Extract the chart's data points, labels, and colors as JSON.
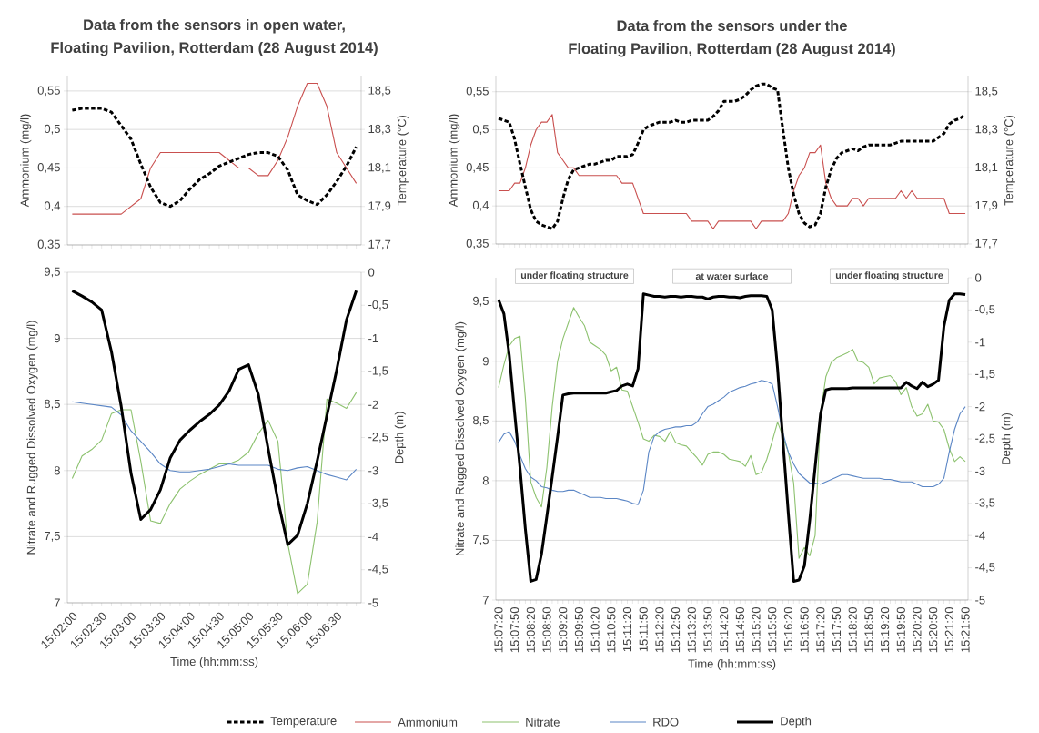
{
  "chart_data": [
    {
      "type": "line",
      "title": "Data from the sensors in open water,",
      "subtitle": "Floating Pavilion, Rotterdam  (28 August 2014)",
      "ylabel": "Ammonium (mg/l)",
      "y2label": "Temperature (°C)",
      "grid": "y",
      "categories": [
        null,
        null,
        null,
        null,
        null,
        null,
        null,
        null,
        null,
        null,
        null,
        null,
        null,
        null,
        null,
        null,
        null,
        null,
        null,
        null,
        null,
        null,
        null,
        null,
        null,
        null,
        null,
        null,
        null,
        null
      ],
      "ylim": [
        0.35,
        0.57
      ],
      "yticks": [
        {
          "value": 0.35,
          "label": "0,35"
        },
        {
          "value": 0.4,
          "label": "0,4"
        },
        {
          "value": 0.45,
          "label": "0,45"
        },
        {
          "value": 0.5,
          "label": "0,5"
        },
        {
          "value": 0.55,
          "label": "0,55"
        }
      ],
      "y2lim": [
        17.7,
        18.58
      ],
      "y2ticks": [
        {
          "value": 17.7,
          "label": "17,7"
        },
        {
          "value": 17.9,
          "label": "17,9"
        },
        {
          "value": 18.1,
          "label": "18,1"
        },
        {
          "value": 18.3,
          "label": "18,3"
        },
        {
          "value": 18.5,
          "label": "18,5"
        }
      ],
      "series": [
        {
          "color": "#000000",
          "axis": "y2",
          "line_style": "dashed",
          "values": [
            18.4,
            18.41,
            18.41,
            18.41,
            18.39,
            18.32,
            18.25,
            18.12,
            18.0,
            17.92,
            17.9,
            17.93,
            17.99,
            18.04,
            18.07,
            18.11,
            18.13,
            18.15,
            18.17,
            18.18,
            18.18,
            18.16,
            18.09,
            17.96,
            17.93,
            17.91,
            17.96,
            18.03,
            18.11,
            18.21
          ]
        },
        {
          "color": "#c9504f",
          "values": [
            0.39,
            0.39,
            0.39,
            0.39,
            0.39,
            0.39,
            0.4,
            0.41,
            0.45,
            0.47,
            0.47,
            0.47,
            0.47,
            0.47,
            0.47,
            0.47,
            0.46,
            0.45,
            0.45,
            0.44,
            0.44,
            0.46,
            0.49,
            0.53,
            0.56,
            0.56,
            0.53,
            0.47,
            0.45,
            0.43
          ]
        }
      ]
    },
    {
      "type": "line",
      "title": "Data from the sensors under the",
      "subtitle": "Floating Pavilion, Rotterdam  (28 August 2014)",
      "ylabel": "Ammonium (mg/l)",
      "y2label": "Temperature (°C)",
      "grid": "y",
      "legend": "bottom",
      "categories": [
        null,
        null,
        null,
        null,
        null,
        null,
        null,
        null,
        null,
        null,
        null,
        null,
        null,
        null,
        null,
        null,
        null,
        null,
        null,
        null,
        null,
        null,
        null,
        null,
        null,
        null,
        null,
        null,
        null,
        null,
        null,
        null,
        null,
        null,
        null,
        null,
        null,
        null,
        null,
        null,
        null,
        null,
        null,
        null,
        null,
        null,
        null,
        null,
        null,
        null,
        null,
        null,
        null,
        null,
        null,
        null,
        null,
        null,
        null,
        null,
        null,
        null,
        null,
        null,
        null,
        null,
        null,
        null,
        null,
        null,
        null,
        null,
        null,
        null,
        null,
        null,
        null,
        null,
        null,
        null,
        null,
        null,
        null,
        null,
        null,
        null,
        null,
        null
      ],
      "ylim": [
        0.35,
        0.57
      ],
      "yticks": [
        {
          "value": 0.35,
          "label": "0,35"
        },
        {
          "value": 0.4,
          "label": "0,4"
        },
        {
          "value": 0.45,
          "label": "0,45"
        },
        {
          "value": 0.5,
          "label": "0,5"
        },
        {
          "value": 0.55,
          "label": "0,55"
        }
      ],
      "y2lim": [
        17.7,
        18.58
      ],
      "y2ticks": [
        {
          "value": 17.7,
          "label": "17,7"
        },
        {
          "value": 17.9,
          "label": "17,9"
        },
        {
          "value": 18.1,
          "label": "18,1"
        },
        {
          "value": 18.3,
          "label": "18,3"
        },
        {
          "value": 18.5,
          "label": "18,5"
        }
      ],
      "series": [
        {
          "name": "Temperature",
          "color": "#000000",
          "axis": "y2",
          "line_style": "dashed",
          "values": [
            18.36,
            18.35,
            18.34,
            18.25,
            18.12,
            18.0,
            17.88,
            17.82,
            17.8,
            17.79,
            17.78,
            17.82,
            17.94,
            18.04,
            18.09,
            18.1,
            18.11,
            18.12,
            18.12,
            18.13,
            18.14,
            18.14,
            18.16,
            18.16,
            18.16,
            18.17,
            18.23,
            18.3,
            18.32,
            18.33,
            18.34,
            18.34,
            18.34,
            18.35,
            18.34,
            18.34,
            18.35,
            18.35,
            18.35,
            18.35,
            18.37,
            18.4,
            18.45,
            18.45,
            18.45,
            18.46,
            18.48,
            18.51,
            18.53,
            18.54,
            18.54,
            18.52,
            18.51,
            18.3,
            18.1,
            17.96,
            17.86,
            17.81,
            17.79,
            17.8,
            17.86,
            18.0,
            18.09,
            18.15,
            18.18,
            18.19,
            18.2,
            18.19,
            18.21,
            18.22,
            18.22,
            18.22,
            18.22,
            18.22,
            18.23,
            18.24,
            18.24,
            18.24,
            18.24,
            18.24,
            18.24,
            18.24,
            18.26,
            18.28,
            18.33,
            18.35,
            18.36,
            18.38
          ]
        },
        {
          "name": "Ammonium",
          "color": "#c9504f",
          "values": [
            0.42,
            0.42,
            0.42,
            0.43,
            0.43,
            0.45,
            0.48,
            0.5,
            0.51,
            0.51,
            0.52,
            0.47,
            0.46,
            0.45,
            0.45,
            0.44,
            0.44,
            0.44,
            0.44,
            0.44,
            0.44,
            0.44,
            0.44,
            0.43,
            0.43,
            0.43,
            0.41,
            0.39,
            0.39,
            0.39,
            0.39,
            0.39,
            0.39,
            0.39,
            0.39,
            0.39,
            0.38,
            0.38,
            0.38,
            0.38,
            0.37,
            0.38,
            0.38,
            0.38,
            0.38,
            0.38,
            0.38,
            0.38,
            0.37,
            0.38,
            0.38,
            0.38,
            0.38,
            0.38,
            0.39,
            0.42,
            0.44,
            0.45,
            0.47,
            0.47,
            0.48,
            0.43,
            0.41,
            0.4,
            0.4,
            0.4,
            0.41,
            0.41,
            0.4,
            0.41,
            0.41,
            0.41,
            0.41,
            0.41,
            0.41,
            0.42,
            0.41,
            0.42,
            0.41,
            0.41,
            0.41,
            0.41,
            0.41,
            0.41,
            0.39,
            0.39,
            0.39,
            0.39
          ]
        }
      ]
    },
    {
      "type": "line",
      "xlabel": "Time (hh:mm:ss)",
      "ylabel": "Nitrate and Rugged Dissolved Oxygen (mg/l)",
      "y2label": "Depth (m)",
      "grid": "y",
      "categories": [
        "15:02:00",
        null,
        null,
        "15:02:30",
        null,
        null,
        "15:03:00",
        null,
        null,
        "15:03:30",
        null,
        null,
        "15:04:00",
        null,
        null,
        "15:04:30",
        null,
        null,
        "15:05:00",
        null,
        null,
        "15:05:30",
        null,
        null,
        "15:06:00",
        null,
        null,
        "15:06:30",
        null,
        null
      ],
      "ylim": [
        7,
        9.5
      ],
      "yticks": [
        7,
        {
          "value": 7.5,
          "label": "7,5"
        },
        8,
        {
          "value": 8.5,
          "label": "8,5"
        },
        9,
        {
          "value": 9.5,
          "label": "9,5"
        }
      ],
      "y2lim": [
        -5,
        0
      ],
      "y2ticks": [
        -5,
        {
          "value": -4.5,
          "label": "-4,5"
        },
        -4,
        {
          "value": -3.5,
          "label": "-3,5"
        },
        -3,
        {
          "value": -2.5,
          "label": "-2,5"
        },
        -2,
        {
          "value": -1.5,
          "label": "-1,5"
        },
        -1,
        {
          "value": -0.5,
          "label": "-0,5"
        },
        0
      ],
      "series": [
        {
          "color": "#8dc26f",
          "values": [
            7.94,
            8.11,
            8.16,
            8.23,
            8.43,
            8.46,
            8.46,
            8.07,
            7.62,
            7.6,
            7.75,
            7.86,
            7.92,
            7.97,
            8.01,
            8.05,
            8.05,
            8.08,
            8.14,
            8.28,
            8.38,
            8.22,
            7.45,
            7.07,
            7.14,
            7.61,
            8.54,
            8.51,
            8.47,
            8.59
          ]
        },
        {
          "color": "#5b86c5",
          "values": [
            8.52,
            8.51,
            8.5,
            8.49,
            8.48,
            8.42,
            8.3,
            8.22,
            8.14,
            8.05,
            8.0,
            7.99,
            7.99,
            8.0,
            8.01,
            8.03,
            8.05,
            8.04,
            8.04,
            8.04,
            8.04,
            8.01,
            8.0,
            8.02,
            8.03,
            8.0,
            7.97,
            7.95,
            7.93,
            8.01
          ]
        },
        {
          "color": "#000000",
          "axis": "y2",
          "values": [
            -0.28,
            -0.36,
            -0.45,
            -0.57,
            -1.2,
            -2.03,
            -3.04,
            -3.74,
            -3.59,
            -3.29,
            -2.81,
            -2.54,
            -2.39,
            -2.26,
            -2.15,
            -2.01,
            -1.8,
            -1.47,
            -1.4,
            -1.85,
            -2.67,
            -3.45,
            -4.12,
            -3.98,
            -3.5,
            -2.86,
            -2.17,
            -1.48,
            -0.72,
            -0.28
          ]
        }
      ]
    },
    {
      "type": "line",
      "xlabel": "Time (hh:mm:ss)",
      "ylabel": "Nitrate and Rugged Dissolved Oxygen (mg/l)",
      "y2label": "Depth (m)",
      "grid": "y",
      "legend": "bottom",
      "annotations": [
        "under floating structure",
        "at water surface",
        "under floating structure"
      ],
      "categories": [
        "15:07:20",
        null,
        null,
        "15:07:50",
        null,
        null,
        "15:08:20",
        null,
        null,
        "15:08:50",
        null,
        null,
        "15:09:20",
        null,
        null,
        "15:09:50",
        null,
        null,
        "15:10:20",
        null,
        null,
        "15:10:50",
        null,
        null,
        "15:11:20",
        null,
        null,
        "15:11:50",
        null,
        null,
        "15:12:20",
        null,
        null,
        "15:12:50",
        null,
        null,
        "15:13:20",
        null,
        null,
        "15:13:50",
        null,
        null,
        "15:14:20",
        null,
        null,
        "15:14:50",
        null,
        null,
        "15:15:20",
        null,
        null,
        "15:15:50",
        null,
        null,
        "15:16:20",
        null,
        null,
        "15:16:50",
        null,
        null,
        "15:17:20",
        null,
        null,
        "15:17:50",
        null,
        null,
        "15:18:20",
        null,
        null,
        "15:18:50",
        null,
        null,
        "15:19:20",
        null,
        null,
        "15:19:50",
        null,
        null,
        "15:20:20",
        null,
        null,
        "15:20:50",
        null,
        null,
        "15:21:20",
        null,
        null,
        "15:21:50"
      ],
      "ylim": [
        7,
        9.7
      ],
      "yticks": [
        7,
        {
          "value": 7.5,
          "label": "7,5"
        },
        8,
        {
          "value": 8.5,
          "label": "8,5"
        },
        9,
        {
          "value": 9.5,
          "label": "9,5"
        }
      ],
      "y2lim": [
        -5,
        0
      ],
      "y2ticks": [
        -5,
        {
          "value": -4.5,
          "label": "-4,5"
        },
        -4,
        {
          "value": -3.5,
          "label": "-3,5"
        },
        -3,
        {
          "value": -2.5,
          "label": "-2,5"
        },
        -2,
        {
          "value": -1.5,
          "label": "-1,5"
        },
        -1,
        {
          "value": -0.5,
          "label": "-0,5"
        },
        0
      ],
      "series": [
        {
          "name": "Nitrate",
          "color": "#8dc26f",
          "values": [
            8.78,
            8.97,
            9.13,
            9.19,
            9.21,
            8.69,
            7.99,
            7.86,
            7.78,
            8.11,
            8.62,
            9.0,
            9.19,
            9.32,
            9.45,
            9.37,
            9.3,
            9.16,
            9.13,
            9.1,
            9.05,
            8.92,
            8.95,
            8.76,
            8.75,
            8.62,
            8.49,
            8.35,
            8.33,
            8.38,
            8.37,
            8.33,
            8.41,
            8.32,
            8.3,
            8.29,
            8.24,
            8.19,
            8.13,
            8.22,
            8.24,
            8.24,
            8.22,
            8.18,
            8.17,
            8.16,
            8.12,
            8.21,
            8.05,
            8.07,
            8.18,
            8.33,
            8.49,
            8.37,
            8.24,
            7.98,
            7.35,
            7.44,
            7.37,
            7.54,
            8.56,
            8.87,
            8.99,
            9.03,
            9.05,
            9.07,
            9.1,
            9.0,
            8.99,
            8.95,
            8.81,
            8.86,
            8.87,
            8.88,
            8.83,
            8.72,
            8.78,
            8.62,
            8.54,
            8.56,
            8.64,
            8.5,
            8.49,
            8.43,
            8.27,
            8.16,
            8.2,
            8.16
          ]
        },
        {
          "name": "RDO",
          "color": "#5b86c5",
          "values": [
            8.32,
            8.39,
            8.41,
            8.33,
            8.21,
            8.1,
            8.03,
            8.0,
            7.95,
            7.94,
            7.92,
            7.91,
            7.91,
            7.92,
            7.92,
            7.9,
            7.88,
            7.86,
            7.86,
            7.86,
            7.85,
            7.85,
            7.85,
            7.84,
            7.83,
            7.81,
            7.8,
            7.92,
            8.24,
            8.37,
            8.41,
            8.43,
            8.44,
            8.45,
            8.45,
            8.46,
            8.46,
            8.49,
            8.56,
            8.62,
            8.64,
            8.67,
            8.7,
            8.74,
            8.76,
            8.78,
            8.79,
            8.81,
            8.82,
            8.84,
            8.83,
            8.81,
            8.62,
            8.4,
            8.24,
            8.14,
            8.06,
            8.02,
            7.98,
            7.98,
            7.97,
            7.99,
            8.01,
            8.03,
            8.05,
            8.05,
            8.04,
            8.03,
            8.02,
            8.02,
            8.02,
            8.02,
            8.01,
            8.01,
            8.0,
            7.99,
            7.99,
            7.99,
            7.97,
            7.95,
            7.95,
            7.95,
            7.97,
            8.02,
            8.24,
            8.43,
            8.56,
            8.62
          ]
        },
        {
          "name": "Depth",
          "color": "#000000",
          "axis": "y2",
          "values": [
            -0.34,
            -0.56,
            -1.2,
            -2.1,
            -2.95,
            -3.9,
            -4.71,
            -4.68,
            -4.29,
            -3.7,
            -3.09,
            -2.47,
            -1.82,
            -1.8,
            -1.79,
            -1.79,
            -1.79,
            -1.79,
            -1.79,
            -1.79,
            -1.79,
            -1.77,
            -1.75,
            -1.68,
            -1.65,
            -1.68,
            -1.41,
            -0.25,
            -0.27,
            -0.29,
            -0.29,
            -0.3,
            -0.29,
            -0.29,
            -0.3,
            -0.29,
            -0.29,
            -0.3,
            -0.3,
            -0.33,
            -0.3,
            -0.29,
            -0.29,
            -0.3,
            -0.3,
            -0.31,
            -0.29,
            -0.28,
            -0.28,
            -0.28,
            -0.29,
            -0.5,
            -1.41,
            -2.53,
            -3.65,
            -4.71,
            -4.69,
            -4.47,
            -3.76,
            -2.94,
            -2.12,
            -1.74,
            -1.72,
            -1.72,
            -1.72,
            -1.72,
            -1.71,
            -1.71,
            -1.71,
            -1.71,
            -1.71,
            -1.71,
            -1.71,
            -1.71,
            -1.71,
            -1.71,
            -1.62,
            -1.68,
            -1.72,
            -1.62,
            -1.69,
            -1.65,
            -1.59,
            -0.76,
            -0.35,
            -0.25,
            -0.25,
            -0.26
          ]
        }
      ]
    }
  ]
}
